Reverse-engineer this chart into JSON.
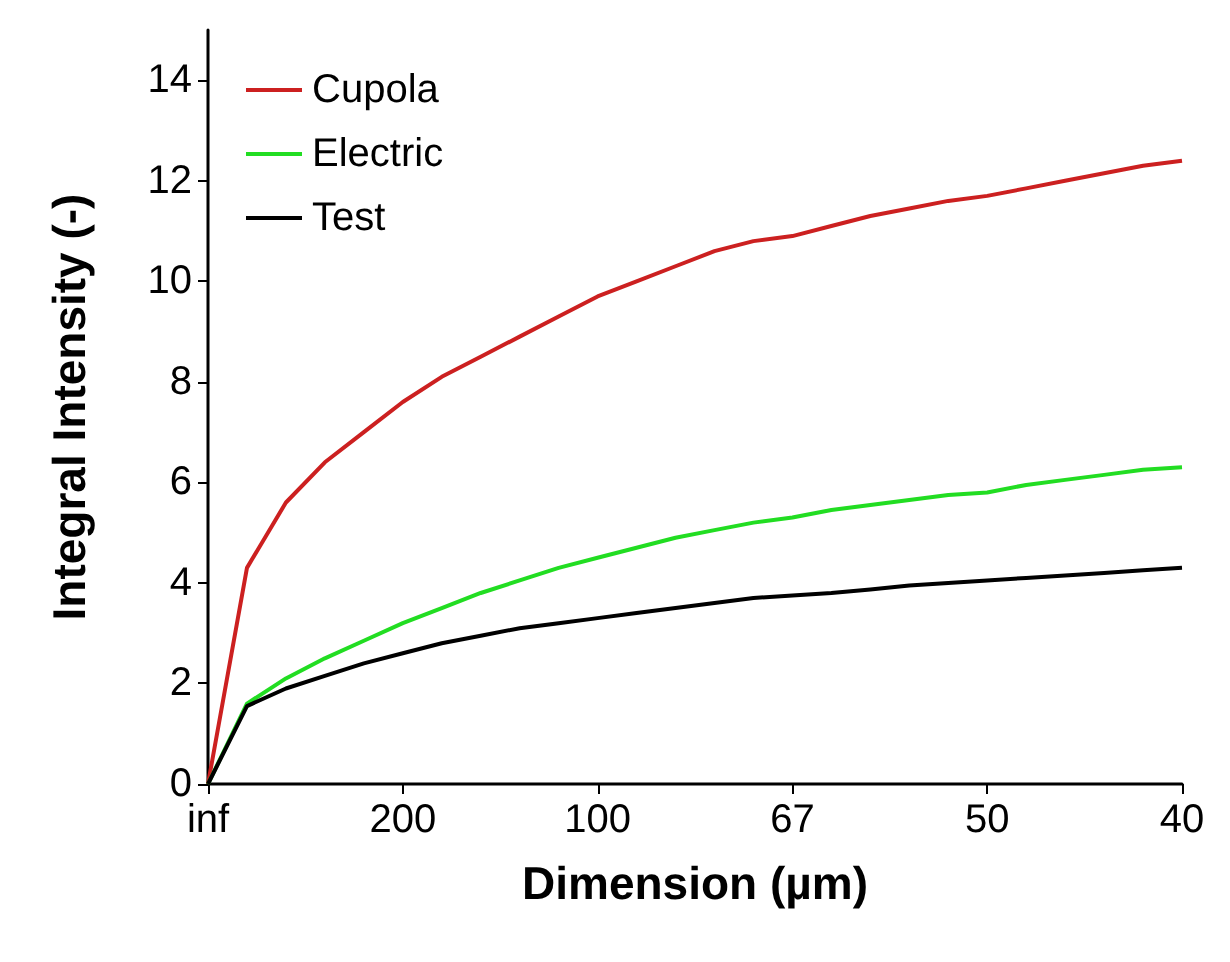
{
  "chart_data": {
    "type": "line",
    "xlabel": "Dimension (µm)",
    "ylabel": "Integral Intensity (-)",
    "categories": [
      "inf",
      null,
      null,
      null,
      null,
      "200",
      null,
      null,
      null,
      null,
      "100",
      null,
      null,
      null,
      null,
      "67",
      null,
      null,
      null,
      null,
      "50",
      null,
      null,
      null,
      null,
      "40"
    ],
    "ylim": [
      0,
      15
    ],
    "yticks": [
      0,
      2,
      4,
      6,
      8,
      10,
      12,
      14
    ],
    "series": [
      {
        "name": "Cupola",
        "color": "#cc2020",
        "values": [
          0,
          4.3,
          5.6,
          6.4,
          7.0,
          7.6,
          8.1,
          8.5,
          8.9,
          9.3,
          9.7,
          10.0,
          10.3,
          10.6,
          10.8,
          10.9,
          11.1,
          11.3,
          11.45,
          11.6,
          11.7,
          11.85,
          12.0,
          12.15,
          12.3,
          12.4
        ]
      },
      {
        "name": "Electric",
        "color": "#22dd22",
        "values": [
          0,
          1.6,
          2.1,
          2.5,
          2.85,
          3.2,
          3.5,
          3.8,
          4.05,
          4.3,
          4.5,
          4.7,
          4.9,
          5.05,
          5.2,
          5.3,
          5.45,
          5.55,
          5.65,
          5.75,
          5.8,
          5.95,
          6.05,
          6.15,
          6.25,
          6.3
        ]
      },
      {
        "name": "Test",
        "color": "#000000",
        "values": [
          0,
          1.55,
          1.9,
          2.15,
          2.4,
          2.6,
          2.8,
          2.95,
          3.1,
          3.2,
          3.3,
          3.4,
          3.5,
          3.6,
          3.7,
          3.75,
          3.8,
          3.87,
          3.95,
          4.0,
          4.05,
          4.1,
          4.15,
          4.2,
          4.25,
          4.3
        ]
      }
    ],
    "legend": "top left",
    "grid": false,
    "marker": "none",
    "line_style": "solid"
  }
}
